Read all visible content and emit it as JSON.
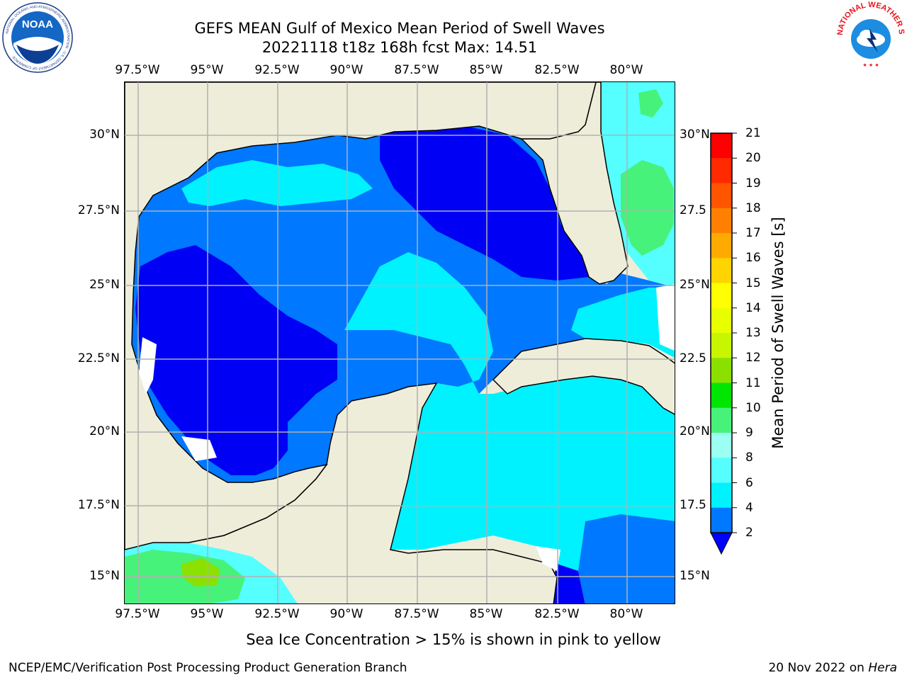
{
  "title_line1": "GEFS MEAN Gulf of Mexico Mean Period of Swell Waves",
  "title_line2": "20221118 t18z 168h fcst   Max: 14.51",
  "lon_labels": [
    "97.5°W",
    "95°W",
    "92.5°W",
    "90°W",
    "87.5°W",
    "85°W",
    "82.5°W",
    "80°W"
  ],
  "lat_labels_left": [
    "30°N",
    "27.5°N",
    "25°N",
    "22.5°N",
    "20°N",
    "17.5°N",
    "15°N"
  ],
  "lat_labels_right": [
    "30°N",
    "27.5",
    "25°N",
    "22.5",
    "20°N",
    "17.5",
    "15°N"
  ],
  "colorbar": {
    "title": "Mean Period of Swell Waves [s]",
    "labels": [
      "21",
      "20",
      "19",
      "18",
      "17",
      "16",
      "15",
      "14",
      "13",
      "12",
      "11",
      "10",
      "9",
      "8",
      "6",
      "4",
      "2"
    ],
    "colors": [
      "#ff0000",
      "#ff2a00",
      "#ff5500",
      "#ff8000",
      "#ffaa00",
      "#ffd400",
      "#ffff00",
      "#e8ff00",
      "#c8f500",
      "#8ce000",
      "#00e600",
      "#47f27a",
      "#9bfff2",
      "#55ffff",
      "#00f2ff",
      "#0078ff",
      "#0000ff"
    ],
    "extend_min_color": "#0000ff"
  },
  "colors": {
    "land": "#eeedda",
    "cyan_light": "#55ffff",
    "cyan": "#00f2ff",
    "blue_mid": "#0078ff",
    "blue_dark": "#0000f5",
    "green": "#47f27a",
    "grid": "#b0b0b0"
  },
  "footer_note": "Sea Ice Concentration > 15% is shown in pink to yellow",
  "credit": "NCEP/EMC/Verification Post Processing Product Generation Branch",
  "date_text": "20 Nov 2022 on ",
  "date_host": "Hera",
  "logos": {
    "noaa_text": "NOAA",
    "nws_text": "NATIONAL WEATHER SERVICE"
  }
}
